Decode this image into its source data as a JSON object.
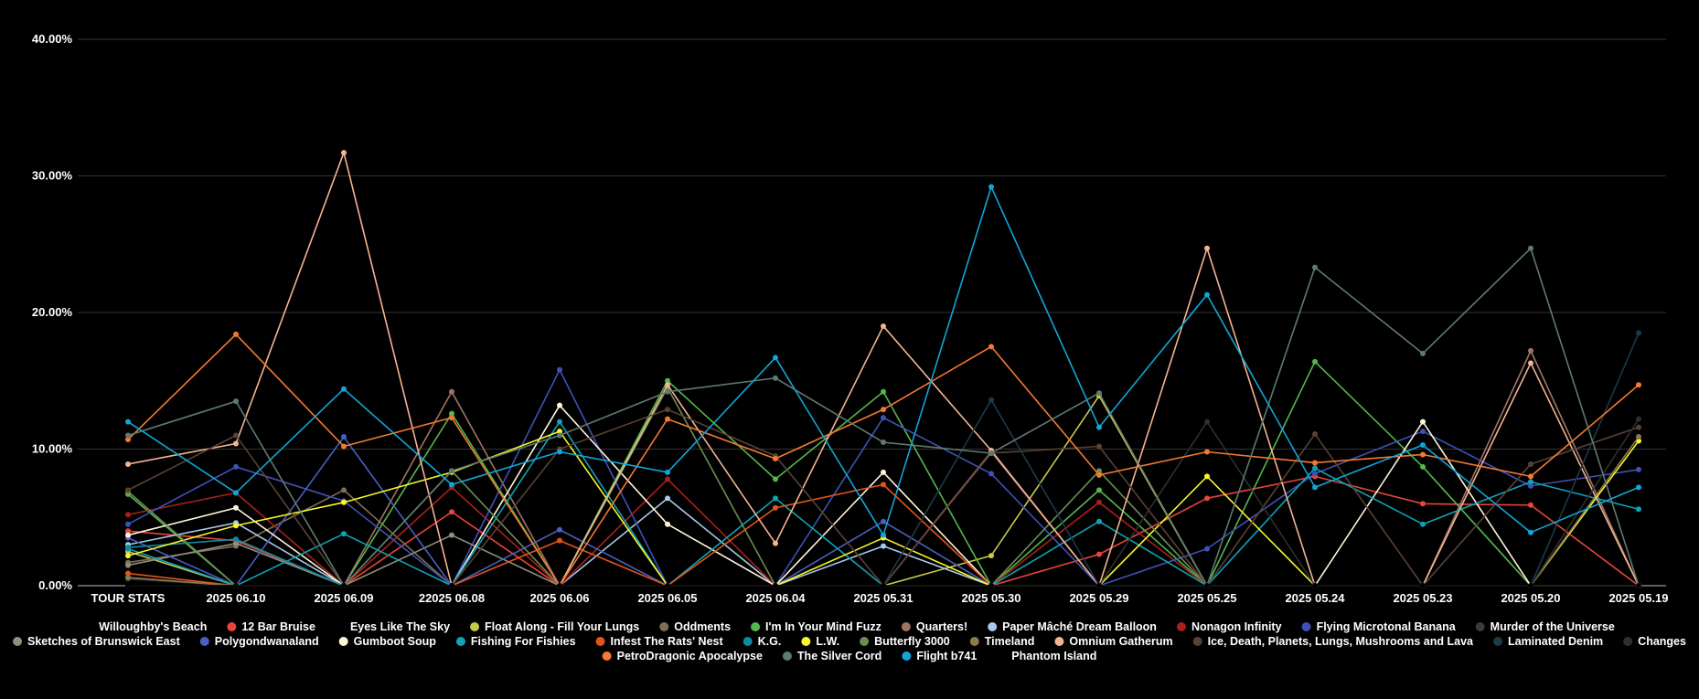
{
  "chart_data": {
    "type": "line",
    "title": "",
    "xlabel": "",
    "ylabel": "",
    "ylim": [
      0,
      40
    ],
    "y_ticks": [
      0,
      10,
      20,
      30,
      40
    ],
    "y_tick_labels": [
      "0.00%",
      "10.00%",
      "20.00%",
      "30.00%",
      "40.00%"
    ],
    "grid": true,
    "legend_position": "bottom",
    "categories": [
      "TOUR STATS",
      "2025 06.10",
      "2025 06.09",
      "22025 06.08",
      "2025 06.06",
      "2025 06.05",
      "2025 06.04",
      "2025 05.31",
      "2025 05.30",
      "2025 05.29",
      "2025 05.25",
      "2025 05.24",
      "2025 05.23",
      "2025 05.20",
      "2025 05.19"
    ],
    "series": [
      {
        "name": "Willoughby's Beach",
        "color": "#000000",
        "values": [
          0,
          0,
          0,
          0,
          0,
          0,
          0,
          0,
          0,
          0,
          0,
          0,
          0,
          0,
          0
        ]
      },
      {
        "name": "12 Bar Bruise",
        "color": "#e8453c",
        "values": [
          4.0,
          3.3,
          0,
          5.4,
          0,
          0,
          0,
          0,
          0,
          2.3,
          6.4,
          8.0,
          6.0,
          5.9,
          0
        ]
      },
      {
        "name": "Eyes Like The Sky",
        "color": "#000000",
        "values": [
          0,
          0,
          0,
          0,
          0,
          0,
          0,
          0,
          0,
          0,
          0,
          0,
          0,
          0,
          0
        ]
      },
      {
        "name": "Float Along - Fill Your Lungs",
        "color": "#c9c94f",
        "values": [
          2.5,
          0,
          0,
          0,
          0,
          0,
          0,
          0,
          2.2,
          13.9,
          0,
          0,
          0,
          0,
          0
        ]
      },
      {
        "name": "Oddments",
        "color": "#7f6f55",
        "values": [
          1.7,
          2.9,
          7.0,
          0,
          0,
          0,
          0,
          0,
          0,
          0,
          0,
          0,
          0,
          0,
          0
        ]
      },
      {
        "name": "I'm In Your Mind Fuzz",
        "color": "#54b84a",
        "values": [
          6.7,
          0,
          0,
          12.6,
          0,
          15.0,
          7.8,
          14.2,
          0,
          7.0,
          0,
          16.4,
          8.7,
          0,
          0
        ]
      },
      {
        "name": "Quarters!",
        "color": "#9e7564",
        "values": [
          0,
          0,
          0,
          14.2,
          0,
          0,
          0,
          0,
          9.8,
          0,
          0,
          0,
          0,
          17.2,
          0
        ]
      },
      {
        "name": "Paper Mâché Dream Balloon",
        "color": "#a9c9ea",
        "values": [
          3.0,
          4.6,
          0,
          0,
          0,
          6.4,
          0,
          2.9,
          0,
          0,
          0,
          0,
          0,
          0,
          0
        ]
      },
      {
        "name": "Nonagon Infinity",
        "color": "#a8201a",
        "values": [
          5.2,
          6.8,
          0,
          7.2,
          0,
          7.8,
          0,
          0,
          0,
          6.1,
          0,
          0,
          0,
          0,
          0
        ]
      },
      {
        "name": "Flying Microtonal Banana",
        "color": "#3f51b5",
        "values": [
          4.5,
          8.7,
          6.2,
          0,
          15.8,
          0,
          0,
          12.3,
          8.2,
          0,
          2.7,
          8.2,
          11.3,
          7.3,
          8.5
        ]
      },
      {
        "name": "Murder of the Universe",
        "color": "#3b3b35",
        "values": [
          0.5,
          0,
          0,
          0,
          0,
          0,
          0,
          0,
          0,
          0,
          0,
          0,
          0,
          0,
          0
        ]
      },
      {
        "name": "Sketches of Brunswick East",
        "color": "#8f8f80",
        "values": [
          1.5,
          3.1,
          0,
          3.7,
          0,
          0,
          0,
          0,
          0,
          0,
          0,
          0,
          0,
          0,
          0
        ]
      },
      {
        "name": "Polygondwanaland",
        "color": "#4a5fc1",
        "values": [
          3.5,
          0,
          10.9,
          0,
          4.1,
          0,
          0,
          4.7,
          0,
          0,
          0,
          0,
          0,
          0,
          0
        ]
      },
      {
        "name": "Gumboot Soup",
        "color": "#fff6da",
        "values": [
          3.7,
          5.7,
          0,
          0,
          13.2,
          4.5,
          0,
          8.3,
          0,
          0,
          0,
          0,
          12.0,
          0,
          0
        ]
      },
      {
        "name": "Fishing For Fishies",
        "color": "#10a2b5",
        "values": [
          2.7,
          0,
          3.8,
          0,
          12.0,
          0,
          6.4,
          0,
          0,
          4.7,
          0,
          8.6,
          4.5,
          7.6,
          5.6
        ]
      },
      {
        "name": "Infest The Rats' Nest",
        "color": "#e3541c",
        "values": [
          0.9,
          0,
          0,
          0,
          3.3,
          0,
          5.7,
          7.4,
          0,
          0,
          0,
          0,
          0,
          0,
          0
        ]
      },
      {
        "name": "K.G.",
        "color": "#0b8da0",
        "values": [
          2.8,
          3.4,
          0,
          0,
          0,
          0,
          0,
          0,
          0,
          0,
          0,
          0,
          0,
          0,
          0
        ]
      },
      {
        "name": "L.W.",
        "color": "#f7f72a",
        "values": [
          2.2,
          4.4,
          6.1,
          8.3,
          11.3,
          0,
          0,
          3.5,
          0,
          0,
          8.0,
          0,
          0,
          0,
          10.6
        ]
      },
      {
        "name": "Butterfly 3000",
        "color": "#6b8d55",
        "values": [
          6.9,
          0,
          0,
          8.4,
          0,
          14.5,
          0,
          0,
          0,
          8.4,
          0,
          0,
          0,
          0,
          0
        ]
      },
      {
        "name": "Timeland",
        "color": "#8d7a4d",
        "values": [
          0.6,
          0,
          0,
          0,
          0,
          0,
          0,
          0,
          0,
          0,
          0,
          0,
          0,
          0,
          10.9
        ]
      },
      {
        "name": "Omnium Gatherum",
        "color": "#f4b492",
        "values": [
          8.9,
          10.4,
          31.7,
          0,
          0,
          14.7,
          3.1,
          19.0,
          9.9,
          0,
          24.7,
          0,
          0,
          16.3,
          0
        ]
      },
      {
        "name": "Ice, Death, Planets, Lungs, Mushrooms and Lava",
        "color": "#5a4136",
        "values": [
          7.0,
          11.0,
          0,
          0,
          10.0,
          12.9,
          9.5,
          0,
          9.7,
          10.2,
          0,
          11.1,
          0,
          8.9,
          11.6
        ]
      },
      {
        "name": "Laminated Denim",
        "color": "#1e3948",
        "values": [
          0,
          0,
          0,
          0,
          0,
          0,
          0,
          0,
          13.6,
          0,
          0,
          0,
          0,
          0,
          18.5
        ]
      },
      {
        "name": "Changes",
        "color": "#2f2f2f",
        "values": [
          0,
          0,
          0,
          0,
          0,
          0,
          0,
          0,
          0,
          0,
          12.0,
          0,
          0,
          0,
          12.2
        ]
      },
      {
        "name": "PetroDragonic Apocalypse",
        "color": "#f47a30",
        "values": [
          10.7,
          18.4,
          10.2,
          12.3,
          0,
          12.2,
          9.3,
          12.9,
          17.5,
          8.1,
          9.8,
          9.0,
          9.6,
          8.0,
          14.7
        ]
      },
      {
        "name": "The Silver Cord",
        "color": "#5f7a70",
        "values": [
          11.0,
          13.5,
          0,
          8.4,
          11.0,
          14.2,
          15.2,
          10.5,
          9.7,
          14.1,
          0,
          23.3,
          17.0,
          24.7,
          0
        ]
      },
      {
        "name": "Flight b741",
        "color": "#11a6d6",
        "values": [
          12.0,
          6.8,
          14.4,
          7.4,
          9.8,
          8.3,
          16.7,
          3.7,
          29.2,
          11.6,
          21.3,
          7.2,
          10.3,
          3.9,
          7.2
        ]
      },
      {
        "name": "Phantom Island",
        "color": "#000000",
        "values": [
          0,
          0,
          0,
          0,
          0,
          0,
          0,
          0,
          0,
          0,
          0,
          0,
          0,
          0,
          0
        ]
      }
    ]
  }
}
